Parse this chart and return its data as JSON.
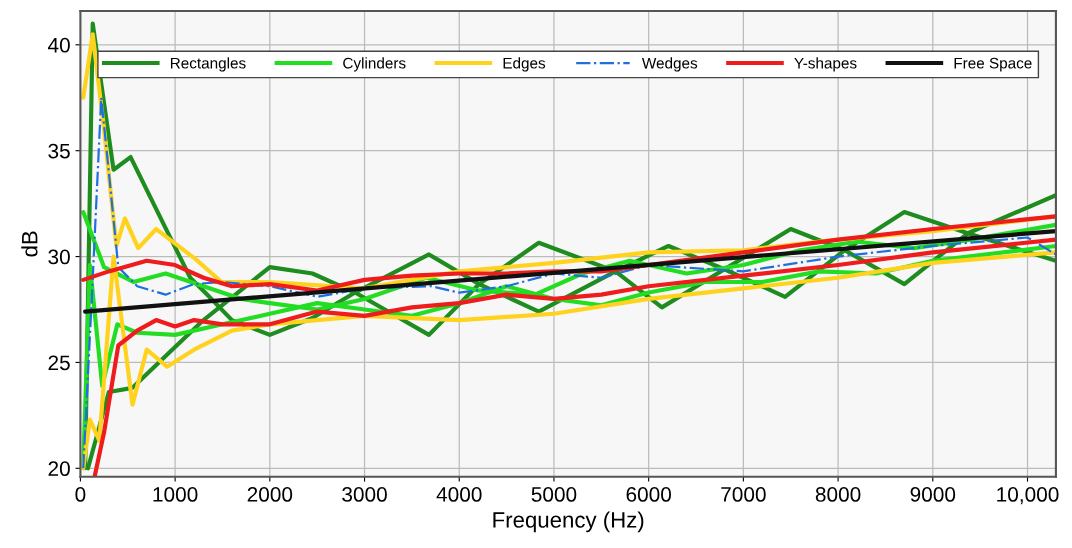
{
  "chart_data": {
    "type": "line",
    "xlabel": "Frequency (Hz)",
    "ylabel": "dB",
    "xlim": [
      0,
      10300
    ],
    "ylim": [
      19.6,
      41.6
    ],
    "xticks": [
      0,
      1000,
      2000,
      3000,
      4000,
      5000,
      6000,
      7000,
      8000,
      9000,
      {
        "value": 10000,
        "label": "10,000"
      }
    ],
    "yticks": [
      20,
      25,
      30,
      35,
      40
    ],
    "grid": true,
    "legend": "top",
    "marker": "none",
    "series": [
      {
        "name": "Rectangles",
        "color": "#1e8c1e",
        "line_style": "solid",
        "x": [
          50,
          130,
          350,
          530,
          915,
          1160,
          1340,
          1600,
          2000,
          2450,
          2900,
          3680,
          4210,
          4840,
          5650,
          6210,
          6800,
          7440,
          8070,
          8700,
          9370,
          10300
        ],
        "values": [
          20,
          41,
          34.1,
          34.7,
          31.2,
          29,
          28.2,
          27,
          26.3,
          27.1,
          28.3,
          30.1,
          28.7,
          27.4,
          29.3,
          30.5,
          29.4,
          28.1,
          30.3,
          32.1,
          31.1,
          29.8
        ]
      },
      {
        "color": "#1e8c1e",
        "line_style": "solid",
        "x": [
          80,
          300,
          550,
          900,
          1300,
          2000,
          2450,
          2900,
          3680,
          4210,
          4840,
          5650,
          6140,
          6800,
          7500,
          8070,
          8700,
          9370,
          10300
        ],
        "values": [
          20,
          23.6,
          23.8,
          25.3,
          27,
          29.5,
          29.2,
          28.3,
          26.3,
          28.7,
          30.65,
          29.3,
          27.6,
          29.4,
          31.3,
          30.3,
          28.7,
          31.1,
          32.9
        ]
      },
      {
        "name": "Cylinders",
        "color": "#22dd22",
        "line_style": "solid",
        "x": [
          30,
          250,
          560,
          900,
          1300,
          1700,
          2000,
          2500,
          3000,
          3650,
          4200,
          4800,
          5300,
          5800,
          6400,
          7000,
          7600,
          8200,
          8800,
          9400,
          10300
        ],
        "values": [
          32.1,
          29.5,
          28.8,
          29.2,
          28.6,
          28,
          27.8,
          27.5,
          28,
          29,
          28.4,
          28.2,
          29.2,
          29.8,
          29.2,
          29.6,
          30.3,
          30.7,
          30.4,
          30.8,
          31.5
        ]
      },
      {
        "color": "#22dd22",
        "line_style": "solid",
        "x": [
          30,
          100,
          230,
          390,
          600,
          1000,
          1500,
          2000,
          2500,
          3000,
          3500,
          4000,
          4500,
          5000,
          5500,
          6000,
          6600,
          7200,
          7800,
          8400,
          9000,
          10300
        ],
        "values": [
          20,
          29.6,
          23.9,
          26.8,
          26.4,
          26.3,
          26.8,
          27.3,
          27.8,
          27.5,
          27.2,
          27.8,
          28.6,
          28,
          27.7,
          28.3,
          28.8,
          28.8,
          29.3,
          29.2,
          29.8,
          30.5
        ]
      },
      {
        "name": "Edges",
        "color": "#ffd21e",
        "line_style": "solid",
        "x": [
          30,
          130,
          250,
          380,
          470,
          610,
          800,
          1210,
          1490,
          2000,
          3000,
          4000,
          5000,
          6000,
          7000,
          8000,
          9000,
          10300
        ],
        "values": [
          37.5,
          40.5,
          36,
          30.5,
          31.8,
          30.4,
          31.3,
          29.9,
          28.8,
          28.8,
          28.5,
          29.3,
          29.7,
          30.2,
          30.3,
          30.8,
          31.2,
          31.9
        ]
      },
      {
        "color": "#ffd21e",
        "line_style": "solid",
        "x": [
          30,
          100,
          200,
          350,
          450,
          550,
          700,
          915,
          1200,
          1600,
          2000,
          3000,
          4000,
          5000,
          6000,
          7000,
          8000,
          9000,
          10300
        ],
        "values": [
          20,
          22.3,
          21.3,
          30,
          26.5,
          23,
          25.6,
          24.8,
          25.6,
          26.5,
          26.8,
          27.2,
          27,
          27.3,
          28,
          28.5,
          29,
          29.7,
          30.2
        ]
      },
      {
        "name": "Wedges",
        "color": "#1f6fe0",
        "line_style": "dashdot",
        "x": [
          30,
          120,
          220,
          300,
          400,
          600,
          900,
          1200,
          1500,
          2000,
          2500,
          3000,
          3700,
          4000,
          4500,
          5000,
          5500,
          6000,
          7000,
          8000,
          9000,
          10000,
          10300
        ],
        "values": [
          20,
          28,
          37.5,
          34,
          29.5,
          28.6,
          28.2,
          28.7,
          28.8,
          28.6,
          28.1,
          28.5,
          28.6,
          28.3,
          28.6,
          29.2,
          29,
          29.6,
          29.3,
          30,
          30.5,
          30.9,
          30.1
        ]
      },
      {
        "name": "Y-shapes",
        "color": "#ee1c1c",
        "line_style": "solid",
        "x": [
          30,
          300,
          700,
          1000,
          1300,
          1600,
          2000,
          2500,
          3000,
          3500,
          4000,
          4500,
          5000,
          5500,
          6000,
          7000,
          8000,
          9000,
          10300
        ],
        "values": [
          28.9,
          29.3,
          29.8,
          29.6,
          29,
          28.6,
          28.7,
          28.4,
          28.9,
          29.1,
          29.2,
          29.2,
          29.3,
          29.3,
          29.6,
          30.2,
          30.8,
          31.3,
          31.9
        ]
      },
      {
        "color": "#ee1c1c",
        "line_style": "solid",
        "x": [
          150,
          250,
          400,
          600,
          800,
          1000,
          1200,
          1500,
          2000,
          2500,
          3000,
          3500,
          4000,
          4500,
          5000,
          5500,
          6000,
          7000,
          8000,
          9000,
          10300
        ],
        "values": [
          19.6,
          21.7,
          25.8,
          26.5,
          27,
          26.7,
          27,
          26.8,
          26.8,
          27.4,
          27.2,
          27.6,
          27.8,
          28.2,
          28,
          28.2,
          28.6,
          29.1,
          29.6,
          30.2,
          30.8
        ]
      },
      {
        "name": "Free Space",
        "color": "#111111",
        "line_style": "solid",
        "x": [
          50,
          10300
        ],
        "values": [
          27.4,
          31.2
        ]
      }
    ]
  }
}
